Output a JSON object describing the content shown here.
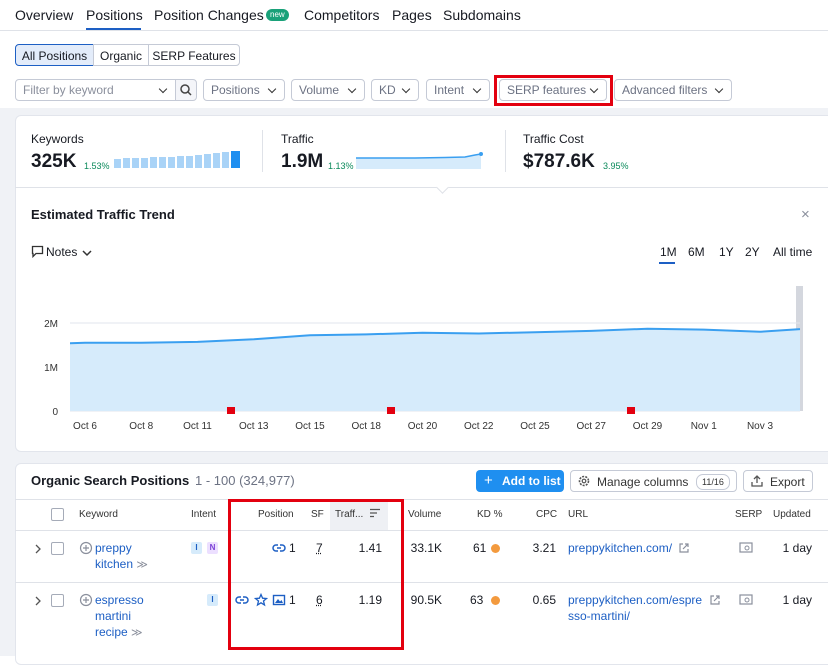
{
  "nav": {
    "tabs": [
      "Overview",
      "Positions",
      "Position Changes",
      "Competitors",
      "Pages",
      "Subdomains"
    ],
    "badge": "new"
  },
  "segments": [
    "All Positions",
    "Organic",
    "SERP Features"
  ],
  "filters": {
    "search_placeholder": "Filter by keyword",
    "dropdowns": [
      "Positions",
      "Volume",
      "KD",
      "Intent",
      "SERP features",
      "Advanced filters"
    ]
  },
  "metrics": [
    {
      "label": "Keywords",
      "value": "325K",
      "change": "1.53%"
    },
    {
      "label": "Traffic",
      "value": "1.9M",
      "change": "1.13%"
    },
    {
      "label": "Traffic Cost",
      "value": "$787.6K",
      "change": "3.95%"
    }
  ],
  "trend": {
    "title": "Estimated Traffic Trend",
    "notes": "Notes",
    "ranges": [
      "1M",
      "6M",
      "1Y",
      "2Y",
      "All time"
    ],
    "chart_data": {
      "type": "area",
      "categories": [
        null,
        "Oct 6",
        "Oct 8",
        "Oct 11",
        "Oct 13",
        "Oct 15",
        "Oct 18",
        "Oct 20",
        "Oct 22",
        "Oct 25",
        "Oct 27",
        "Oct 29",
        "Nov 1",
        "Nov 3",
        null
      ],
      "values": [
        1540000,
        1550000,
        1550000,
        1570000,
        1630000,
        1720000,
        1740000,
        1780000,
        1760000,
        1790000,
        1820000,
        1870000,
        1850000,
        1800000,
        1860000
      ],
      "color": "#3a9ff0",
      "ylim": [
        0,
        2840000
      ],
      "yticks": [
        0,
        {
          "value": 1000000,
          "label": "1M"
        },
        {
          "value": 2000000,
          "label": "2M"
        }
      ],
      "grid": true
    }
  },
  "table": {
    "title": "Organic Search Positions",
    "count": "1 - 100 (324,977)",
    "buttons": {
      "add": "Add to list",
      "manage": "Manage columns",
      "manage_count": "11/16",
      "export": "Export"
    },
    "columns": [
      "Keyword",
      "Intent",
      "Position",
      "SF",
      "Traff...",
      "Volume",
      "KD %",
      "CPC",
      "URL",
      "SERP",
      "Updated"
    ],
    "rows": [
      {
        "keyword": "preppy kitchen",
        "intents": [
          "I",
          "N"
        ],
        "position": "1",
        "sf": "7",
        "traffic": "1.41",
        "volume": "33.1K",
        "kd": "61",
        "cpc": "3.21",
        "url": "preppykitchen.com/",
        "updated": "1 day"
      },
      {
        "keyword": "espresso martini recipe",
        "intents": [
          "I"
        ],
        "position": "1",
        "sf": "6",
        "traffic": "1.19",
        "volume": "90.5K",
        "kd": "63",
        "cpc": "0.65",
        "url": "preppykitchen.com/espresso-martini/",
        "updated": "1 day"
      }
    ]
  }
}
